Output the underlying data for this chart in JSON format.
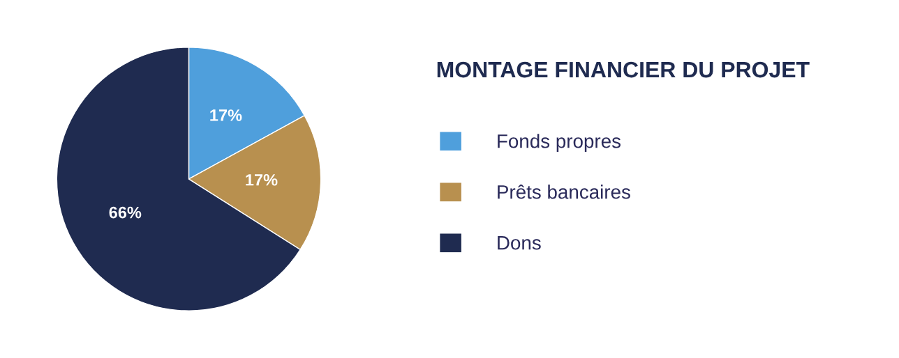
{
  "chart_data": {
    "type": "pie",
    "title": "MONTAGE FINANCIER DU PROJET",
    "categories": [
      "Fonds propres",
      "Prêts bancaires",
      "Dons"
    ],
    "values": [
      17,
      17,
      66
    ],
    "colors": [
      "#4f9fdc",
      "#b8904f",
      "#1f2b50"
    ],
    "value_labels": [
      "17%",
      "17%",
      "66%"
    ],
    "legend": "right"
  }
}
